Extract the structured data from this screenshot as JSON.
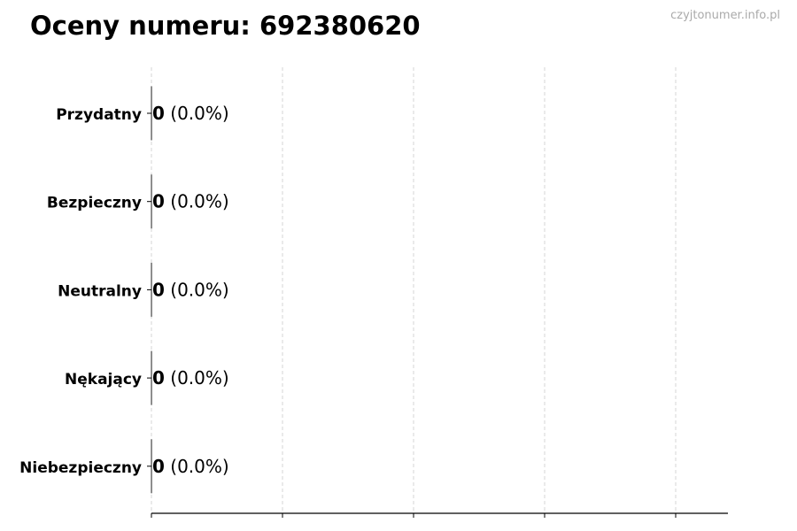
{
  "title": "Oceny numeru: 692380620",
  "watermark": "czyjtonumer.info.pl",
  "chart_data": {
    "type": "bar",
    "orientation": "horizontal",
    "title": "Oceny numeru: 692380620",
    "categories": [
      "Przydatny",
      "Bezpieczny",
      "Neutralny",
      "Nękający",
      "Niebezpieczny"
    ],
    "values": [
      0,
      0,
      0,
      0,
      0
    ],
    "data_labels": [
      "0 (0.0%)",
      "0 (0.0%)",
      "0 (0.0%)",
      "0 (0.0%)",
      "0 (0.0%)"
    ],
    "xlabel": "",
    "ylabel": "",
    "grid": "vertical dashed",
    "bar_edge_color": "#333333",
    "grid_color": "#cccccc"
  }
}
